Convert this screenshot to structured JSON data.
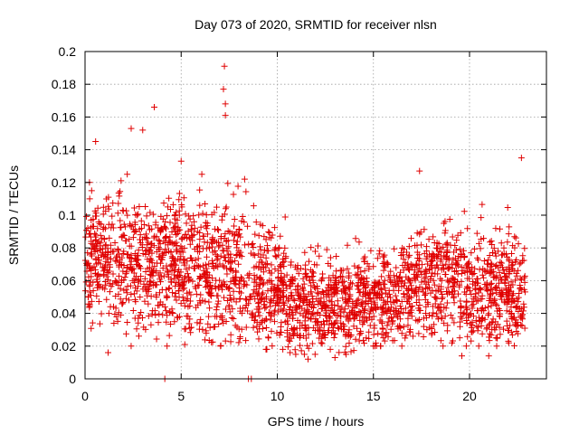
{
  "chart_data": {
    "type": "scatter",
    "title": "Day 073 of 2020, SRMTID for receiver nlsn",
    "xlabel": "GPS time / hours",
    "ylabel": "SRMTID / TECUs",
    "xlim": [
      0,
      24
    ],
    "ylim": [
      0,
      0.2
    ],
    "xticks": [
      "0",
      "5",
      "10",
      "15",
      "20"
    ],
    "yticks": [
      "0",
      "0.02",
      "0.04",
      "0.06",
      "0.08",
      "0.1",
      "0.12",
      "0.14",
      "0.16",
      "0.18",
      "0.2"
    ],
    "grid": true,
    "marker": "plus",
    "color": "#e00000",
    "highlight_points": [
      {
        "x": 7.25,
        "y": 0.191
      },
      {
        "x": 7.2,
        "y": 0.177
      },
      {
        "x": 7.3,
        "y": 0.168
      },
      {
        "x": 7.3,
        "y": 0.161
      },
      {
        "x": 3.6,
        "y": 0.166
      },
      {
        "x": 3.0,
        "y": 0.152
      },
      {
        "x": 2.4,
        "y": 0.153
      },
      {
        "x": 0.55,
        "y": 0.145
      },
      {
        "x": 5.0,
        "y": 0.133
      },
      {
        "x": 22.7,
        "y": 0.135
      },
      {
        "x": 17.4,
        "y": 0.127
      },
      {
        "x": 8.3,
        "y": 0.122
      },
      {
        "x": 4.15,
        "y": 0.0
      },
      {
        "x": 8.5,
        "y": 0.0
      },
      {
        "x": 8.65,
        "y": 0.0
      },
      {
        "x": 1.2,
        "y": 0.016
      },
      {
        "x": 11.6,
        "y": 0.012
      },
      {
        "x": 13.0,
        "y": 0.013
      },
      {
        "x": 19.6,
        "y": 0.014
      },
      {
        "x": 21.0,
        "y": 0.014
      }
    ],
    "bands": [
      {
        "x0": 0.0,
        "x1": 1.5,
        "lo": 0.02,
        "hi": 0.12,
        "mid": 0.075
      },
      {
        "x0": 1.5,
        "x1": 4.0,
        "lo": 0.02,
        "hi": 0.125,
        "mid": 0.07
      },
      {
        "x0": 4.0,
        "x1": 6.0,
        "lo": 0.02,
        "hi": 0.12,
        "mid": 0.07
      },
      {
        "x0": 6.0,
        "x1": 8.7,
        "lo": 0.02,
        "hi": 0.13,
        "mid": 0.065
      },
      {
        "x0": 8.7,
        "x1": 10.5,
        "lo": 0.018,
        "hi": 0.11,
        "mid": 0.057
      },
      {
        "x0": 10.5,
        "x1": 14.0,
        "lo": 0.015,
        "hi": 0.085,
        "mid": 0.045
      },
      {
        "x0": 14.0,
        "x1": 16.5,
        "lo": 0.02,
        "hi": 0.1,
        "mid": 0.05
      },
      {
        "x0": 16.5,
        "x1": 19.5,
        "lo": 0.02,
        "hi": 0.11,
        "mid": 0.06
      },
      {
        "x0": 19.5,
        "x1": 22.9,
        "lo": 0.02,
        "hi": 0.11,
        "mid": 0.055
      }
    ],
    "point_count": 2600
  }
}
